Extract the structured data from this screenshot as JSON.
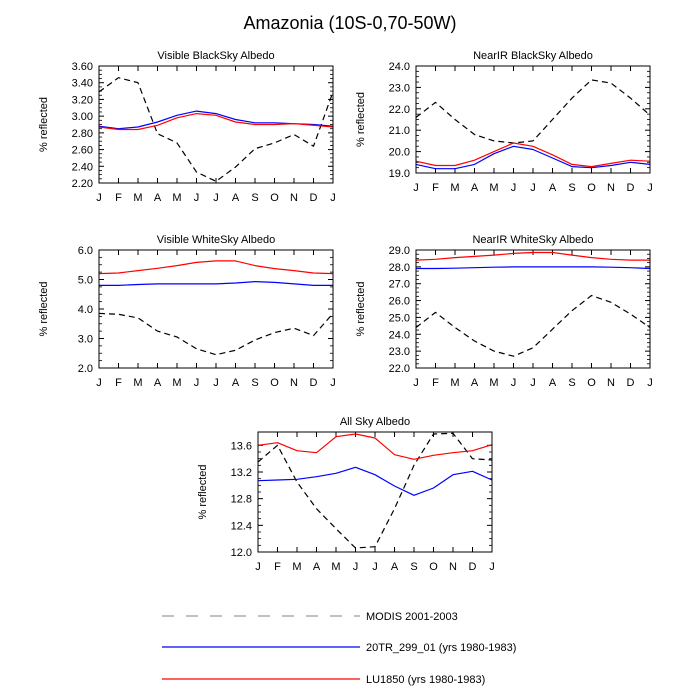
{
  "figure": {
    "title": "Amazonia (10S-0,70-50W)"
  },
  "colors": {
    "modis": "#000000",
    "run_20tr": "#0000ff",
    "run_lu1850": "#ff0000",
    "legend_modis": "#999999"
  },
  "legend": [
    {
      "key": "modis",
      "label": "MODIS 2001-2003"
    },
    {
      "key": "run_20tr",
      "label": "20TR_299_01 (yrs 1980-1983)"
    },
    {
      "key": "run_lu1850",
      "label": "LU1850 (yrs 1980-1983)"
    }
  ],
  "chart_data": [
    {
      "type": "line",
      "title": "Visible BlackSky Albedo",
      "xlabel": "",
      "ylabel": "% reflected",
      "categories": [
        "J",
        "F",
        "M",
        "A",
        "M",
        "J",
        "J",
        "A",
        "S",
        "O",
        "N",
        "D",
        "J"
      ],
      "ylim": [
        2.2,
        3.6
      ],
      "yticks": [
        2.2,
        2.4,
        2.6,
        2.8,
        3.0,
        3.2,
        3.4,
        3.6
      ],
      "ytick_labels": [
        "2.20",
        "2.40",
        "2.60",
        "2.80",
        "3.00",
        "3.20",
        "3.40",
        "3.60"
      ],
      "series": [
        {
          "name": "MODIS 2001-2003",
          "key": "modis",
          "values": [
            3.29,
            3.46,
            3.4,
            2.79,
            2.68,
            2.33,
            2.22,
            2.39,
            2.61,
            2.68,
            2.78,
            2.64,
            3.29
          ]
        },
        {
          "name": "20TR_299_01 (yrs 1980-1983)",
          "key": "run_20tr",
          "values": [
            2.88,
            2.85,
            2.87,
            2.93,
            3.01,
            3.06,
            3.03,
            2.96,
            2.92,
            2.92,
            2.91,
            2.9,
            2.88
          ]
        },
        {
          "name": "LU1850 (yrs 1980-1983)",
          "key": "run_lu1850",
          "values": [
            2.87,
            2.84,
            2.84,
            2.89,
            2.98,
            3.03,
            3.01,
            2.93,
            2.9,
            2.9,
            2.91,
            2.89,
            2.87
          ]
        }
      ]
    },
    {
      "type": "line",
      "title": "NearIR BlackSky Albedo",
      "xlabel": "",
      "ylabel": "% reflected",
      "categories": [
        "J",
        "F",
        "M",
        "A",
        "M",
        "J",
        "J",
        "A",
        "S",
        "O",
        "N",
        "D",
        "J"
      ],
      "ylim": [
        19.0,
        24.0
      ],
      "yticks": [
        19.0,
        20.0,
        21.0,
        22.0,
        23.0,
        24.0
      ],
      "ytick_labels": [
        "19.0",
        "20.0",
        "21.0",
        "22.0",
        "23.0",
        "24.0"
      ],
      "series": [
        {
          "name": "MODIS 2001-2003",
          "key": "modis",
          "values": [
            21.6,
            22.3,
            21.5,
            20.8,
            20.5,
            20.4,
            20.5,
            21.5,
            22.5,
            23.35,
            23.2,
            22.5,
            21.7
          ]
        },
        {
          "name": "20TR_299_01 (yrs 1980-1983)",
          "key": "run_20tr",
          "values": [
            19.4,
            19.2,
            19.2,
            19.4,
            19.9,
            20.25,
            20.1,
            19.7,
            19.3,
            19.25,
            19.35,
            19.5,
            19.4
          ]
        },
        {
          "name": "LU1850 (yrs 1980-1983)",
          "key": "run_lu1850",
          "values": [
            19.55,
            19.35,
            19.35,
            19.6,
            20.0,
            20.4,
            20.25,
            19.85,
            19.4,
            19.3,
            19.45,
            19.6,
            19.55
          ]
        }
      ]
    },
    {
      "type": "line",
      "title": "Visible WhiteSky Albedo",
      "xlabel": "",
      "ylabel": "% reflected",
      "categories": [
        "J",
        "F",
        "M",
        "A",
        "M",
        "J",
        "J",
        "A",
        "S",
        "O",
        "N",
        "D",
        "J"
      ],
      "ylim": [
        2.0,
        6.0
      ],
      "yticks": [
        2.0,
        3.0,
        4.0,
        5.0,
        6.0
      ],
      "ytick_labels": [
        "2.0",
        "3.0",
        "4.0",
        "5.0",
        "6.0"
      ],
      "series": [
        {
          "name": "MODIS 2001-2003",
          "key": "modis",
          "values": [
            3.85,
            3.82,
            3.7,
            3.25,
            3.05,
            2.65,
            2.45,
            2.6,
            2.95,
            3.2,
            3.35,
            3.1,
            3.85
          ]
        },
        {
          "name": "20TR_299_01 (yrs 1980-1983)",
          "key": "run_20tr",
          "values": [
            4.8,
            4.8,
            4.83,
            4.85,
            4.85,
            4.85,
            4.85,
            4.88,
            4.93,
            4.9,
            4.85,
            4.8,
            4.8
          ]
        },
        {
          "name": "LU1850 (yrs 1980-1983)",
          "key": "run_lu1850",
          "values": [
            5.2,
            5.22,
            5.3,
            5.38,
            5.47,
            5.58,
            5.63,
            5.63,
            5.47,
            5.37,
            5.3,
            5.22,
            5.2
          ]
        }
      ]
    },
    {
      "type": "line",
      "title": "NearIR WhiteSky Albedo",
      "xlabel": "",
      "ylabel": "% reflected",
      "categories": [
        "J",
        "F",
        "M",
        "A",
        "M",
        "J",
        "J",
        "A",
        "S",
        "O",
        "N",
        "D",
        "J"
      ],
      "ylim": [
        22.0,
        29.0
      ],
      "yticks": [
        22.0,
        23.0,
        24.0,
        25.0,
        26.0,
        27.0,
        28.0,
        29.0
      ],
      "ytick_labels": [
        "22.0",
        "23.0",
        "24.0",
        "25.0",
        "26.0",
        "27.0",
        "28.0",
        "29.0"
      ],
      "series": [
        {
          "name": "MODIS 2001-2003",
          "key": "modis",
          "values": [
            24.4,
            25.3,
            24.4,
            23.6,
            23.0,
            22.7,
            23.2,
            24.3,
            25.4,
            26.3,
            25.9,
            25.2,
            24.4
          ]
        },
        {
          "name": "20TR_299_01 (yrs 1980-1983)",
          "key": "run_20tr",
          "values": [
            27.9,
            27.9,
            27.92,
            27.95,
            27.98,
            28.0,
            28.0,
            28.0,
            28.0,
            28.0,
            27.98,
            27.95,
            27.9
          ]
        },
        {
          "name": "LU1850 (yrs 1980-1983)",
          "key": "run_lu1850",
          "values": [
            28.4,
            28.45,
            28.55,
            28.62,
            28.7,
            28.8,
            28.85,
            28.85,
            28.7,
            28.55,
            28.45,
            28.4,
            28.4
          ]
        }
      ]
    },
    {
      "type": "line",
      "title": "All Sky Albedo",
      "xlabel": "",
      "ylabel": "% reflected",
      "categories": [
        "J",
        "F",
        "M",
        "A",
        "M",
        "J",
        "J",
        "A",
        "S",
        "O",
        "N",
        "D",
        "J"
      ],
      "ylim": [
        12.0,
        13.8
      ],
      "yticks": [
        12.0,
        12.4,
        12.8,
        13.2,
        13.6
      ],
      "ytick_labels": [
        "12.0",
        "12.4",
        "12.8",
        "13.2",
        "13.6"
      ],
      "series": [
        {
          "name": "MODIS 2001-2003",
          "key": "modis",
          "values": [
            13.35,
            13.6,
            13.05,
            12.65,
            12.35,
            12.06,
            12.08,
            12.65,
            13.3,
            13.77,
            13.78,
            13.4,
            13.38
          ]
        },
        {
          "name": "20TR_299_01 (yrs 1980-1983)",
          "key": "run_20tr",
          "values": [
            13.07,
            13.08,
            13.09,
            13.13,
            13.18,
            13.27,
            13.16,
            12.99,
            12.85,
            12.96,
            13.16,
            13.21,
            13.08
          ]
        },
        {
          "name": "LU1850 (yrs 1980-1983)",
          "key": "run_lu1850",
          "values": [
            13.6,
            13.64,
            13.52,
            13.49,
            13.73,
            13.77,
            13.71,
            13.46,
            13.39,
            13.45,
            13.49,
            13.52,
            13.61
          ]
        }
      ]
    }
  ]
}
